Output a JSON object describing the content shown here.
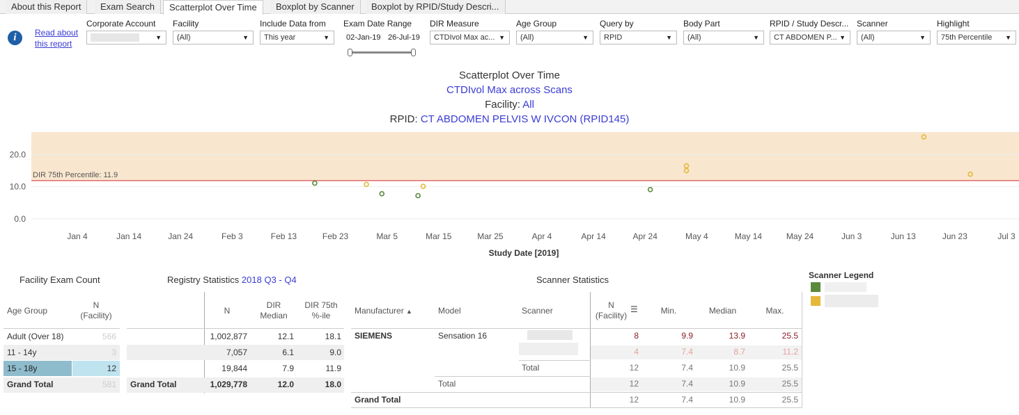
{
  "tabs": [
    "About this Report",
    "Exam Search",
    "Scatterplot Over Time",
    "Boxplot by Scanner",
    "Boxplot by RPID/Study Descri..."
  ],
  "info_link": [
    "Read about",
    "this report"
  ],
  "filters": {
    "corporate_account": {
      "label": "Corporate Account",
      "value": ""
    },
    "facility": {
      "label": "Facility",
      "value": "(All)"
    },
    "include_data": {
      "label": "Include Data from",
      "value": "This year"
    },
    "exam_date_range": {
      "label": "Exam Date Range",
      "start": "02-Jan-19",
      "end": "26-Jul-19"
    },
    "dir_measure": {
      "label": "DIR Measure",
      "value": "CTDIvol Max ac..."
    },
    "age_group": {
      "label": "Age Group",
      "value": "(All)"
    },
    "query_by": {
      "label": "Query by",
      "value": "RPID"
    },
    "body_part": {
      "label": "Body Part",
      "value": "(All)"
    },
    "rpid": {
      "label": "RPID / Study Descr...",
      "value": "CT ABDOMEN P..."
    },
    "scanner": {
      "label": "Scanner",
      "value": "(All)"
    },
    "highlight": {
      "label": "Highlight",
      "value": "75th Percentile"
    }
  },
  "chart_data": {
    "type": "scatter",
    "title": "Scatterplot Over Time",
    "subtitle": "CTDIvol Max across Scans",
    "facility_label": "Facility: ",
    "facility_value": "All",
    "rpid_label": "RPID: ",
    "rpid_value": "CT ABDOMEN PELVIS W IVCON (RPID145)",
    "xlabel": "Study Date [2019]",
    "x_ticks": [
      "Jan 4",
      "Jan 14",
      "Jan 24",
      "Feb 3",
      "Feb 13",
      "Feb 23",
      "Mar 5",
      "Mar 15",
      "Mar 25",
      "Apr 4",
      "Apr 14",
      "Apr 24",
      "May 4",
      "May 14",
      "May 24",
      "Jun 3",
      "Jun 13",
      "Jun 23",
      "Jul 3"
    ],
    "y_ticks": [
      "0.0",
      "10.0",
      "20.0"
    ],
    "ylim": [
      -2,
      27
    ],
    "reference_line": {
      "label": "DIR 75th Percentile: 11.9",
      "value": 11.9,
      "color": "#e06b6b"
    },
    "band_color": "#f8e6cf",
    "series": [
      {
        "color": "#5a8a3c",
        "points": [
          {
            "x": "2019-02-19",
            "y": 11.1
          },
          {
            "x": "2019-03-04",
            "y": 7.8
          },
          {
            "x": "2019-03-11",
            "y": 7.2
          },
          {
            "x": "2019-04-25",
            "y": 9.1
          }
        ]
      },
      {
        "color": "#e6b83a",
        "points": [
          {
            "x": "2019-02-29",
            "y": 10.7
          },
          {
            "x": "2019-03-12",
            "y": 10.1
          },
          {
            "x": "2019-05-02",
            "y": 16.5
          },
          {
            "x": "2019-05-02",
            "y": 15.0
          },
          {
            "x": "2019-06-17",
            "y": 25.5
          },
          {
            "x": "2019-06-26",
            "y": 13.9
          }
        ]
      }
    ]
  },
  "facility_table": {
    "title": "Facility Exam Count",
    "col_age": "Age Group",
    "col_n": [
      "N",
      "(Facility)"
    ],
    "rows": [
      {
        "age": "Adult (Over 18)",
        "n": "566"
      },
      {
        "age": "11 - 14y",
        "n": "3"
      },
      {
        "age": "15 - 18y",
        "n": "12"
      }
    ],
    "grand_total": {
      "label": "Grand Total",
      "n": "581"
    }
  },
  "registry_table": {
    "title": "Registry Statistics ",
    "period": "2018 Q3 - Q4",
    "col_n": "N",
    "col_median": [
      "DIR",
      "Median"
    ],
    "col_p75": [
      "DIR 75th",
      "%-ile"
    ],
    "rows": [
      {
        "n": "1,002,877",
        "median": "12.1",
        "p75": "18.1"
      },
      {
        "n": "7,057",
        "median": "6.1",
        "p75": "9.0"
      },
      {
        "n": "19,844",
        "median": "7.9",
        "p75": "11.9"
      }
    ],
    "grand_total": {
      "label": "Grand Total",
      "n": "1,029,778",
      "median": "12.0",
      "p75": "18.0"
    }
  },
  "scanner_table": {
    "title": "Scanner Statistics",
    "cols": {
      "manufacturer": "Manufacturer",
      "model": "Model",
      "scanner": "Scanner",
      "n": [
        "N",
        "(Facility)"
      ],
      "min": "Min.",
      "median": "Median",
      "max": "Max."
    },
    "manufacturer": "SIEMENS",
    "model": "Sensation 16",
    "rows": [
      {
        "n": "8",
        "min": "9.9",
        "median": "13.9",
        "max": "25.5"
      },
      {
        "n": "4",
        "min": "7.4",
        "median": "8.7",
        "max": "11.2"
      }
    ],
    "total_scanner": {
      "label": "Total",
      "n": "12",
      "min": "7.4",
      "median": "10.9",
      "max": "25.5"
    },
    "total_model": {
      "label": "Total",
      "n": "12",
      "min": "7.4",
      "median": "10.9",
      "max": "25.5"
    },
    "grand_total": {
      "label": "Grand Total",
      "n": "12",
      "min": "7.4",
      "median": "10.9",
      "max": "25.5"
    }
  },
  "scanner_legend": {
    "title": "Scanner Legend",
    "colors": [
      "#5a8a3c",
      "#e6b83a"
    ]
  },
  "colors": {
    "accent_link": "#3b3bd6",
    "highlight_row": "#8fbccc",
    "highlight_bar": "#bfe3ef",
    "max_red": "#8b1e2d"
  }
}
